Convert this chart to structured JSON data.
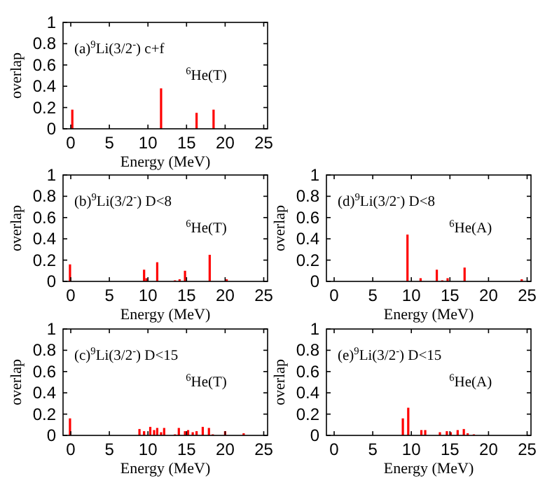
{
  "chart_data": [
    {
      "type": "bar",
      "xlabel": "Energy (MeV)",
      "ylabel": "overlap",
      "annotations": [
        "(a)$^{9}$Li(3/2$^{-}$) c+f",
        "$^{6}$He(T)"
      ],
      "color": "#ff0000",
      "x": [
        0.2,
        11.7,
        16.3,
        18.5
      ],
      "values": [
        0.18,
        0.38,
        0.15,
        0.18
      ],
      "xlim": [
        -1,
        25.5
      ],
      "xticks": [
        0,
        5,
        10,
        15,
        20,
        25
      ],
      "ylim": [
        0,
        1
      ],
      "yticks": [
        0,
        0.2,
        0.4,
        0.6,
        0.8,
        1
      ],
      "grid": false
    },
    {
      "type": "bar",
      "xlabel": "Energy (MeV)",
      "ylabel": "overlap",
      "annotations": [
        "(b)$^{9}$Li(3/2$^{-}$) D<8",
        "$^{6}$He(T)"
      ],
      "color": "#ff0000",
      "x": [
        -0.1,
        9.5,
        9.8,
        11.2,
        13.5,
        14.1,
        14.8,
        18,
        20.2
      ],
      "values": [
        0.16,
        0.11,
        0.03,
        0.18,
        0.01,
        0.02,
        0.1,
        0.25,
        0.02
      ],
      "xlim": [
        -1,
        25.5
      ],
      "xticks": [
        0,
        5,
        10,
        15,
        20,
        25
      ],
      "ylim": [
        0,
        1
      ],
      "yticks": [
        0,
        0.2,
        0.4,
        0.6,
        0.8,
        1
      ],
      "grid": false
    },
    {
      "type": "bar",
      "xlabel": "Energy (MeV)",
      "ylabel": "overlap",
      "annotations": [
        "(d)$^{9}$Li(3/2$^{-}$) D<8",
        "$^{6}$He(A)"
      ],
      "color": "#ff0000",
      "x": [
        9.5,
        11.2,
        13.3,
        14,
        14.7,
        16.9,
        24.3
      ],
      "values": [
        0.44,
        0.03,
        0.11,
        0.01,
        0.03,
        0.13,
        0.02
      ],
      "xlim": [
        -1,
        25.5
      ],
      "xticks": [
        0,
        5,
        10,
        15,
        20,
        25
      ],
      "ylim": [
        0,
        1
      ],
      "yticks": [
        0,
        0.2,
        0.4,
        0.6,
        0.8,
        1
      ],
      "grid": false
    },
    {
      "type": "bar",
      "xlabel": "Energy (MeV)",
      "ylabel": "overlap",
      "annotations": [
        "(c)$^{9}$Li(3/2$^{-}$) D<15",
        "$^{6}$He(T)"
      ],
      "color": "#ff0000",
      "x": [
        -0.1,
        8.9,
        9.5,
        10.3,
        10.8,
        11.2,
        11.7,
        12.1,
        13.5,
        14,
        14.8,
        15.2,
        15.8,
        16.3,
        17.1,
        17.9,
        18.4,
        20,
        22.4
      ],
      "values": [
        0.16,
        0.06,
        0.04,
        0.08,
        0.05,
        0.07,
        0.03,
        0.07,
        0.01,
        0.07,
        0.04,
        0.05,
        0.03,
        0.04,
        0.08,
        0.07,
        0.01,
        0.04,
        0.02
      ],
      "xlim": [
        -1,
        25.5
      ],
      "xticks": [
        0,
        5,
        10,
        15,
        20,
        25
      ],
      "ylim": [
        0,
        1
      ],
      "yticks": [
        0,
        0.2,
        0.4,
        0.6,
        0.8,
        1
      ],
      "grid": false
    },
    {
      "type": "bar",
      "xlabel": "Energy (MeV)",
      "ylabel": "overlap",
      "annotations": [
        "(e)$^{9}$Li(3/2$^{-}$) D<15",
        "$^{6}$He(A)"
      ],
      "color": "#ff0000",
      "x": [
        8.9,
        9.6,
        11.3,
        11.8,
        13.7,
        14.6,
        15.1,
        16,
        16.8,
        17.3,
        18.1
      ],
      "values": [
        0.16,
        0.26,
        0.05,
        0.05,
        0.03,
        0.04,
        0.03,
        0.05,
        0.06,
        0.02,
        0.01
      ],
      "xlim": [
        -1,
        25.5
      ],
      "xticks": [
        0,
        5,
        10,
        15,
        20,
        25
      ],
      "ylim": [
        0,
        1
      ],
      "yticks": [
        0,
        0.2,
        0.4,
        0.6,
        0.8,
        1
      ],
      "grid": false
    }
  ]
}
